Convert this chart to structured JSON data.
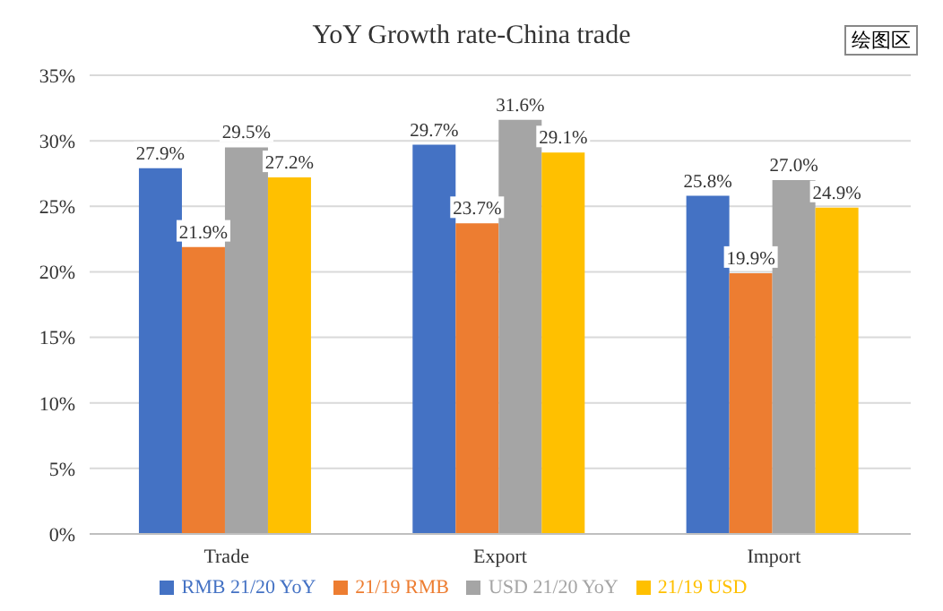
{
  "chart_data": {
    "type": "bar",
    "title": "YoY Growth rate-China trade",
    "categories": [
      "Trade",
      "Export",
      "Import"
    ],
    "series": [
      {
        "name": "RMB 21/20 YoY",
        "color": "#4472c4",
        "values": [
          27.9,
          29.7,
          25.8
        ],
        "value_labels": [
          "27.9%",
          "29.7%",
          "25.8%"
        ]
      },
      {
        "name": "21/19 RMB",
        "color": "#ed7d31",
        "values": [
          21.9,
          23.7,
          19.9
        ],
        "value_labels": [
          "21.9%",
          "23.7%",
          "19.9%"
        ]
      },
      {
        "name": "USD 21/20 YoY",
        "color": "#a5a5a5",
        "values": [
          29.5,
          31.6,
          27.0
        ],
        "value_labels": [
          "29.5%",
          "31.6%",
          "27.0%"
        ]
      },
      {
        "name": "21/19 USD",
        "color": "#ffc000",
        "values": [
          27.2,
          29.1,
          24.9
        ],
        "value_labels": [
          "27.2%",
          "29.1%",
          "24.9%"
        ]
      }
    ],
    "ylim": [
      0,
      35
    ],
    "yticks": [
      {
        "value": 0,
        "label": "0%"
      },
      {
        "value": 5,
        "label": "5%"
      },
      {
        "value": 10,
        "label": "10%"
      },
      {
        "value": 15,
        "label": "15%"
      },
      {
        "value": 20,
        "label": "20%"
      },
      {
        "value": 25,
        "label": "25%"
      },
      {
        "value": 30,
        "label": "30%"
      },
      {
        "value": 35,
        "label": "35%"
      }
    ],
    "grid": "y",
    "legend": "bottom",
    "annotations": [
      "绘图区"
    ]
  }
}
